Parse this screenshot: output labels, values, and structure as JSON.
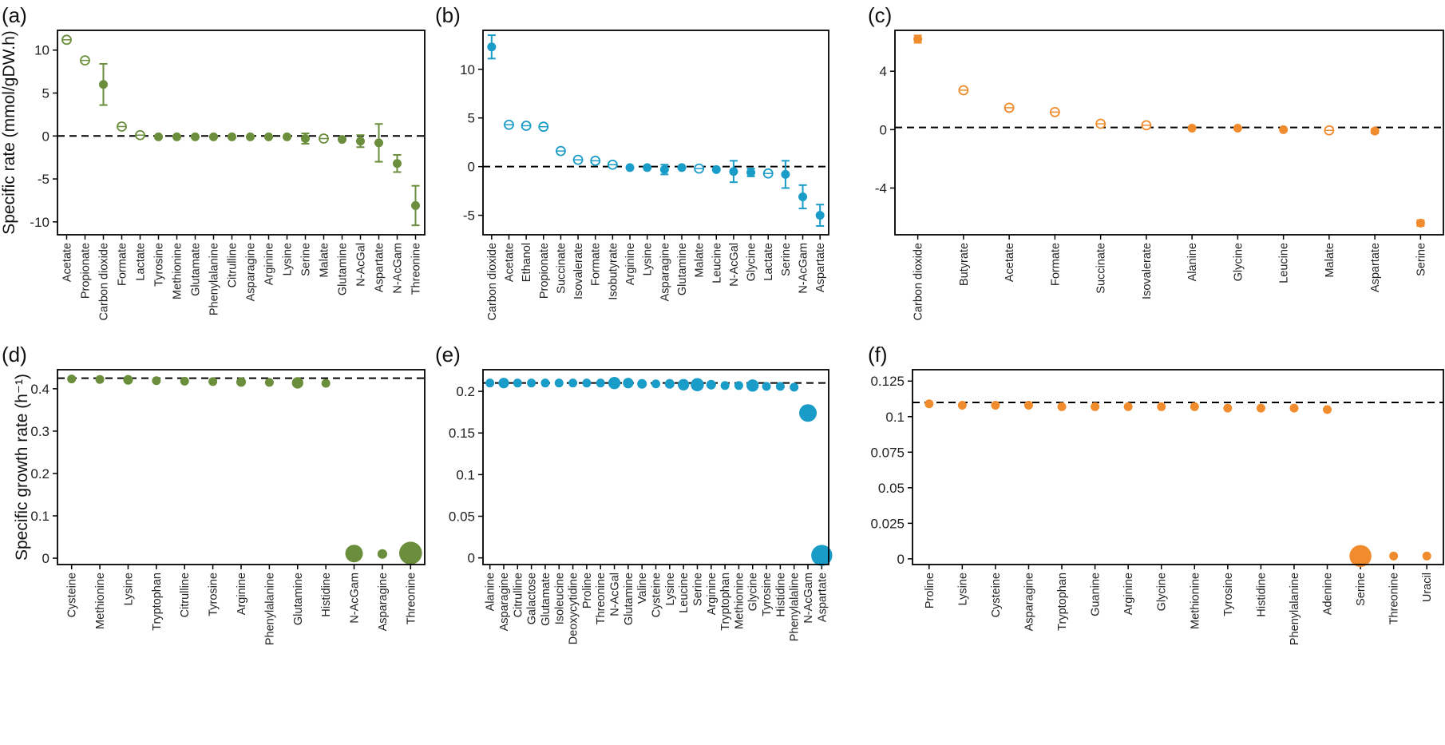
{
  "chart_data": [
    {
      "panel_label": "(a)",
      "type": "scatter",
      "ylabel": "Specific rate (mmol/gDW.h)",
      "color": "#6a8e3b",
      "ylim": [
        -11.5,
        12.3
      ],
      "yticks": [
        10,
        5,
        0,
        -5,
        -10
      ],
      "yticklabels": [
        "10",
        "5",
        "0",
        "-5",
        "-10"
      ],
      "reference_line": 0,
      "categories": [
        "Acetate",
        "Propionate",
        "Carbon dioxide",
        "Formate",
        "Lactate",
        "Tyrosine",
        "Methionine",
        "Glutamate",
        "Phenylalanine",
        "Citrulline",
        "Asparagine",
        "Arginine",
        "Lysine",
        "Serine",
        "Malate",
        "Glutamine",
        "N-AcGal",
        "Aspartate",
        "N-AcGam",
        "Threonine"
      ],
      "values": [
        11.2,
        8.8,
        6.0,
        1.1,
        0.1,
        -0.1,
        -0.1,
        -0.1,
        -0.1,
        -0.1,
        -0.1,
        -0.1,
        -0.1,
        -0.3,
        -0.3,
        -0.4,
        -0.6,
        -0.8,
        -3.2,
        -8.1
      ],
      "errors": [
        0,
        0,
        2.4,
        0,
        0,
        0,
        0,
        0,
        0,
        0,
        0,
        0,
        0,
        0.6,
        0,
        0,
        0.7,
        2.2,
        1.0,
        2.3
      ],
      "open_markers": [
        true,
        true,
        false,
        true,
        true,
        false,
        false,
        false,
        false,
        false,
        false,
        false,
        false,
        false,
        true,
        false,
        false,
        false,
        false,
        false
      ]
    },
    {
      "panel_label": "(b)",
      "type": "scatter",
      "ylabel": "",
      "color": "#1a9cc8",
      "ylim": [
        -7.0,
        14.0
      ],
      "yticks": [
        10,
        5,
        0,
        -5
      ],
      "yticklabels": [
        "10",
        "5",
        "0",
        "-5"
      ],
      "reference_line": 0,
      "categories": [
        "Carbon dioxide",
        "Acetate",
        "Ethanol",
        "Propionate",
        "Succinate",
        "Isovalerate",
        "Formate",
        "Isobutyrate",
        "Arginine",
        "Lysine",
        "Asparagine",
        "Glutamine",
        "Malate",
        "Leucine",
        "N-AcGal",
        "Glycine",
        "Lactate",
        "Serine",
        "N-AcGam",
        "Aspartate"
      ],
      "values": [
        12.3,
        4.3,
        4.2,
        4.1,
        1.6,
        0.7,
        0.6,
        0.2,
        -0.1,
        -0.1,
        -0.3,
        -0.1,
        -0.2,
        -0.3,
        -0.5,
        -0.6,
        -0.7,
        -0.8,
        -3.1,
        -5.0
      ],
      "errors": [
        1.2,
        0,
        0,
        0,
        0,
        0,
        0,
        0,
        0,
        0,
        0.5,
        0,
        0,
        0,
        1.1,
        0.4,
        0,
        1.4,
        1.2,
        1.1
      ],
      "open_markers": [
        false,
        true,
        true,
        true,
        true,
        true,
        true,
        true,
        false,
        false,
        false,
        false,
        true,
        false,
        false,
        false,
        true,
        false,
        false,
        false
      ]
    },
    {
      "panel_label": "(c)",
      "type": "scatter",
      "ylabel": "",
      "color": "#f08c2e",
      "ylim": [
        -7.2,
        6.8
      ],
      "yticks": [
        4,
        0,
        -4
      ],
      "yticklabels": [
        "4",
        "0",
        "-4"
      ],
      "reference_line": 0.15,
      "categories": [
        "Carbon dioxide",
        "Butyrate",
        "Acetate",
        "Formate",
        "Succinate",
        "Isovalerate",
        "Alanine",
        "Glycine",
        "Leucine",
        "Malate",
        "Aspartate",
        "Serine"
      ],
      "values": [
        6.2,
        2.7,
        1.5,
        1.2,
        0.4,
        0.3,
        0.1,
        0.1,
        0.0,
        -0.05,
        -0.1,
        -6.4
      ],
      "errors": [
        0.25,
        0,
        0,
        0,
        0,
        0,
        0,
        0,
        0,
        0,
        0.15,
        0.2
      ],
      "open_markers": [
        false,
        true,
        true,
        true,
        true,
        true,
        false,
        false,
        false,
        true,
        false,
        false
      ]
    },
    {
      "panel_label": "(d)",
      "type": "scatter",
      "ylabel": "Specific growth rate (h⁻¹)",
      "color": "#6a8e3b",
      "ylim": [
        -0.015,
        0.445
      ],
      "yticks": [
        0.4,
        0.3,
        0.2,
        0.1,
        0
      ],
      "yticklabels": [
        "0.4",
        "0.3",
        "0.2",
        "0.1",
        "0"
      ],
      "reference_line": 0.425,
      "categories": [
        "Cysteine",
        "Methionine",
        "Lysine",
        "Tryptophan",
        "Citrulline",
        "Tyrosine",
        "Arginine",
        "Phenylalanine",
        "Glutamine",
        "Histidine",
        "N-AcGam",
        "Asparagine",
        "Threonine"
      ],
      "values": [
        0.423,
        0.422,
        0.421,
        0.419,
        0.418,
        0.417,
        0.416,
        0.415,
        0.414,
        0.413,
        0.011,
        0.01,
        0.012
      ],
      "marker_sizes": [
        1.0,
        1.0,
        1.1,
        1.0,
        1.0,
        1.0,
        1.1,
        1.0,
        1.3,
        1.0,
        2.0,
        1.1,
        2.6
      ]
    },
    {
      "panel_label": "(e)",
      "type": "scatter",
      "ylabel": "",
      "color": "#1a9cc8",
      "ylim": [
        -0.008,
        0.226
      ],
      "yticks": [
        0.2,
        0.15,
        0.1,
        0.05,
        0
      ],
      "yticklabels": [
        "0.2",
        "0.15",
        "0.1",
        "0.05",
        "0"
      ],
      "reference_line": 0.21,
      "categories": [
        "Alanine",
        "Asparagine",
        "Citrulline",
        "Galactose",
        "Glutamate",
        "Isoleucine",
        "Deoxycytidine",
        "Proline",
        "Threonine",
        "N-AcGal",
        "Glutamine",
        "Valine",
        "Cysteine",
        "Lysine",
        "Leucine",
        "Serine",
        "Arginine",
        "Tryptophan",
        "Methionine",
        "Glycine",
        "Tyrosine",
        "Histidine",
        "Phenylalaline",
        "N-AcGam",
        "Aspartate"
      ],
      "values": [
        0.21,
        0.21,
        0.21,
        0.21,
        0.21,
        0.21,
        0.21,
        0.21,
        0.21,
        0.21,
        0.21,
        0.209,
        0.209,
        0.209,
        0.208,
        0.208,
        0.208,
        0.207,
        0.207,
        0.207,
        0.206,
        0.206,
        0.205,
        0.174,
        0.003
      ],
      "marker_sizes": [
        1.0,
        1.2,
        1.0,
        1.0,
        1.0,
        1.0,
        1.0,
        1.0,
        1.0,
        1.4,
        1.2,
        1.1,
        1.0,
        1.1,
        1.3,
        1.5,
        1.1,
        1.0,
        1.0,
        1.4,
        1.0,
        1.0,
        1.0,
        2.0,
        2.4
      ]
    },
    {
      "panel_label": "(f)",
      "type": "scatter",
      "ylabel": "",
      "color": "#f08c2e",
      "ylim": [
        -0.004,
        0.133
      ],
      "yticks": [
        0.125,
        0.1,
        0.075,
        0.05,
        0.025,
        0
      ],
      "yticklabels": [
        "0.125",
        "0.1",
        "0.075",
        "0.05",
        "0.025",
        "0"
      ],
      "reference_line": 0.11,
      "categories": [
        "Proline",
        "Lysine",
        "Cysteine",
        "Asparagine",
        "Tryptophan",
        "Guanine",
        "Arginine",
        "Glycine",
        "Methionine",
        "Tyrosine",
        "Histidine",
        "Phenylalanine",
        "Adenine",
        "Serine",
        "Threonine",
        "Uracil"
      ],
      "values": [
        0.109,
        0.108,
        0.108,
        0.108,
        0.107,
        0.107,
        0.107,
        0.107,
        0.107,
        0.106,
        0.106,
        0.106,
        0.105,
        0.002,
        0.002,
        0.002
      ],
      "marker_sizes": [
        1.0,
        1.0,
        1.0,
        1.0,
        1.0,
        1.0,
        1.0,
        1.0,
        1.0,
        1.0,
        1.0,
        1.0,
        1.0,
        2.5,
        1.0,
        1.0
      ]
    }
  ]
}
